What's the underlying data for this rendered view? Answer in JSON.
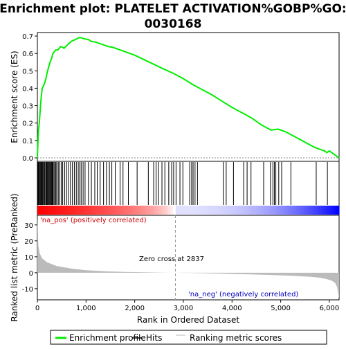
{
  "chart_data": {
    "type": "line",
    "title": "Enrichment plot: PLATELET ACTIVATION%GOBP%GO:\n0030168",
    "xlabel": "Rank in Ordered Dataset",
    "ylabel_top": "Enrichment score (ES)",
    "ylabel_bottom": "Ranked list metric (PreRanked)",
    "x_ticks": [
      0,
      1000,
      2000,
      3000,
      4000,
      5000,
      6000
    ],
    "x_tick_labels": [
      "0",
      "1,000",
      "2,000",
      "3,000",
      "4,000",
      "5,000",
      "6,000"
    ],
    "xlim": [
      0,
      6200
    ],
    "es_ylim": [
      -0.02,
      0.72
    ],
    "es_ticks": [
      0.0,
      0.1,
      0.2,
      0.3,
      0.4,
      0.5,
      0.6,
      0.7
    ],
    "es_tick_labels": [
      "0.0",
      "0.1",
      "0.2",
      "0.3",
      "0.4",
      "0.5",
      "0.6",
      "0.7"
    ],
    "metric_ylim": [
      -17,
      36
    ],
    "metric_ticks": [
      -10,
      0,
      10,
      20,
      30
    ],
    "metric_tick_labels": [
      "-10",
      "0",
      "10",
      "20",
      "30"
    ],
    "es_curve": {
      "x": [
        0,
        20,
        40,
        60,
        80,
        100,
        120,
        150,
        180,
        200,
        230,
        260,
        290,
        320,
        350,
        380,
        420,
        480,
        550,
        620,
        700,
        780,
        850,
        900,
        950,
        1050,
        1100,
        1200,
        1250,
        1350,
        1450,
        1550,
        1700,
        2000,
        2300,
        2600,
        2800,
        3000,
        3200,
        3400,
        3600,
        3800,
        4000,
        4200,
        4400,
        4600,
        4800,
        4950,
        5100,
        5300,
        5500,
        5700,
        5800,
        5900,
        5950,
        6000,
        6100,
        6200
      ],
      "y": [
        0.0,
        0.15,
        0.2,
        0.28,
        0.35,
        0.4,
        0.41,
        0.43,
        0.46,
        0.49,
        0.52,
        0.55,
        0.57,
        0.6,
        0.61,
        0.62,
        0.62,
        0.64,
        0.63,
        0.65,
        0.67,
        0.68,
        0.69,
        0.69,
        0.685,
        0.68,
        0.67,
        0.665,
        0.66,
        0.65,
        0.64,
        0.635,
        0.62,
        0.59,
        0.55,
        0.51,
        0.485,
        0.455,
        0.42,
        0.39,
        0.36,
        0.325,
        0.29,
        0.26,
        0.23,
        0.19,
        0.16,
        0.165,
        0.15,
        0.12,
        0.09,
        0.06,
        0.05,
        0.04,
        0.03,
        0.04,
        0.02,
        0.0
      ]
    },
    "hits": [
      5,
      15,
      25,
      40,
      55,
      70,
      85,
      100,
      115,
      130,
      150,
      170,
      185,
      200,
      215,
      230,
      245,
      260,
      275,
      290,
      305,
      320,
      340,
      360,
      380,
      400,
      430,
      460,
      490,
      520,
      560,
      600,
      640,
      680,
      720,
      760,
      800,
      840,
      870,
      900,
      940,
      980,
      1050,
      1110,
      1180,
      1230,
      1290,
      1360,
      1420,
      1480,
      1530,
      1600,
      1700,
      1760,
      1870,
      2050,
      2280,
      2390,
      2440,
      2490,
      2560,
      2620,
      2700,
      2760,
      2800,
      2850,
      2930,
      2990,
      3130,
      3170,
      3200,
      3240,
      3290,
      3820,
      3880,
      4030,
      4240,
      4310,
      4390,
      4650,
      4790,
      4840,
      4870,
      4900,
      4960,
      5020,
      5210,
      5730,
      5960
    ],
    "metric_profile": {
      "x": [
        0,
        20,
        50,
        100,
        200,
        400,
        700,
        1000,
        1400,
        1800,
        2200,
        2600,
        2837,
        3200,
        3600,
        4000,
        4400,
        4800,
        5200,
        5600,
        5800,
        5950,
        6050,
        6120,
        6160,
        6200
      ],
      "y": [
        36,
        17,
        12,
        9,
        6.5,
        4.2,
        2.6,
        1.6,
        0.9,
        0.5,
        0.25,
        0.08,
        0.0,
        -0.2,
        -0.45,
        -0.75,
        -1.05,
        -1.4,
        -1.85,
        -2.5,
        -3.1,
        -4.0,
        -5.0,
        -6.5,
        -9.0,
        -16.0
      ]
    },
    "zero_cross_rank": 2837,
    "annotations": {
      "pos_label": "'na_pos' (positively correlated)",
      "neg_label": "'na_neg' (negatively correlated)",
      "zero_cross_label": "Zero cross at 2837"
    },
    "legend": {
      "placement": "bottom",
      "entries": [
        {
          "label": "Enrichment profile",
          "color": "#00ee00",
          "style": "thick-line"
        },
        {
          "label": "Hits",
          "color": "#000000",
          "style": "line"
        },
        {
          "label": "Ranking metric scores",
          "color": "#bbbbbb",
          "style": "line"
        }
      ]
    },
    "colors": {
      "es_line": "#00ee00",
      "hit": "#000000",
      "metric_fill": "#bbbbbb",
      "pos_text": "#cc0000",
      "neg_text": "#0000bb",
      "band_red": "#ff0000",
      "band_blue": "#0000ff"
    }
  }
}
